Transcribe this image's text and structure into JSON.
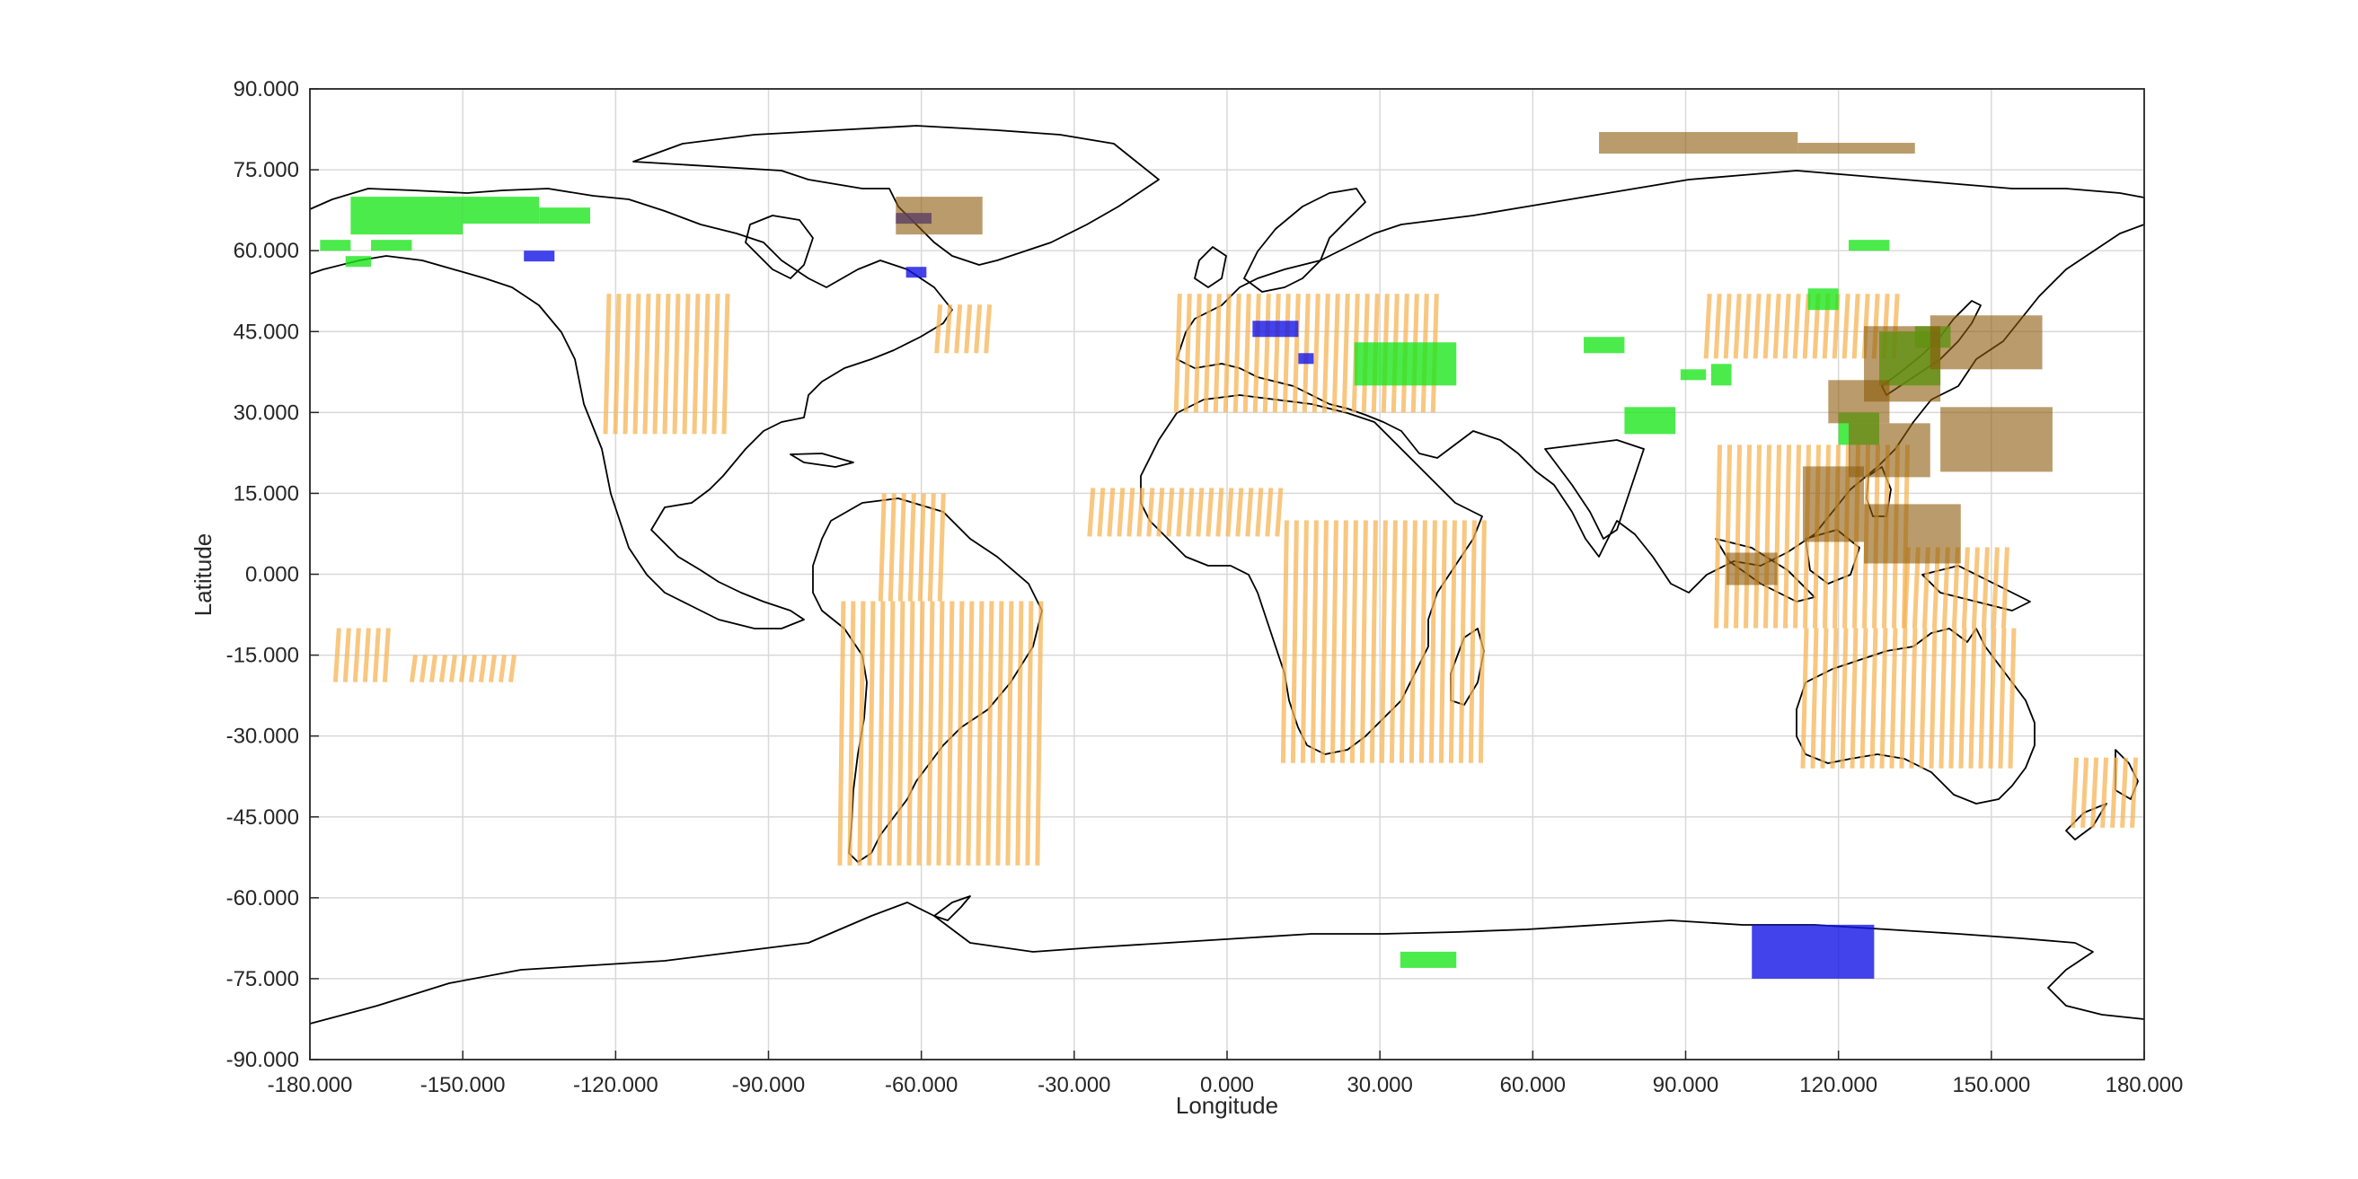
{
  "chart_data": {
    "type": "map",
    "xlabel": "Longitude",
    "ylabel": "Latitude",
    "xlim": [
      -180,
      180
    ],
    "ylim": [
      -90,
      90
    ],
    "grid": true,
    "xticks": [
      "-180.000",
      "-150.000",
      "-120.000",
      "-90.000",
      "-60.000",
      "-30.000",
      "0.000",
      "30.000",
      "60.000",
      "90.000",
      "120.000",
      "150.000",
      "180.000"
    ],
    "xtick_values": [
      -180,
      -150,
      -120,
      -90,
      -60,
      -30,
      0,
      30,
      60,
      90,
      120,
      150,
      180
    ],
    "yticks": [
      "90.000",
      "75.000",
      "60.000",
      "45.000",
      "30.000",
      "15.000",
      "0.000",
      "-15.000",
      "-30.000",
      "-45.000",
      "-60.000",
      "-75.000",
      "-90.000"
    ],
    "ytick_values": [
      90,
      75,
      60,
      45,
      30,
      15,
      0,
      -15,
      -30,
      -45,
      -60,
      -75,
      -90
    ],
    "colors": {
      "orange": "#f5b455",
      "green": "#1ee61e",
      "blue": "#1414e6",
      "brown": "#8c5a0a",
      "coastline": "#000000",
      "grid": "#d9d9d9"
    },
    "regions": {
      "green": [
        {
          "lon": [
            -172,
            -150
          ],
          "lat": [
            63,
            70
          ]
        },
        {
          "lon": [
            -150,
            -135
          ],
          "lat": [
            65,
            70
          ]
        },
        {
          "lon": [
            -135,
            -125
          ],
          "lat": [
            65,
            68
          ]
        },
        {
          "lon": [
            -178,
            -172
          ],
          "lat": [
            60,
            62
          ]
        },
        {
          "lon": [
            -168,
            -160
          ],
          "lat": [
            60,
            62
          ]
        },
        {
          "lon": [
            -173,
            -168
          ],
          "lat": [
            57,
            59
          ]
        },
        {
          "lon": [
            25,
            45
          ],
          "lat": [
            35,
            43
          ]
        },
        {
          "lon": [
            70,
            78
          ],
          "lat": [
            41,
            44
          ]
        },
        {
          "lon": [
            78,
            88
          ],
          "lat": [
            26,
            31
          ]
        },
        {
          "lon": [
            89,
            94
          ],
          "lat": [
            36,
            38
          ]
        },
        {
          "lon": [
            95,
            99
          ],
          "lat": [
            35,
            39
          ]
        },
        {
          "lon": [
            114,
            120
          ],
          "lat": [
            49,
            53
          ]
        },
        {
          "lon": [
            122,
            130
          ],
          "lat": [
            60,
            62
          ]
        },
        {
          "lon": [
            128,
            140
          ],
          "lat": [
            35,
            45
          ]
        },
        {
          "lon": [
            120,
            128
          ],
          "lat": [
            24,
            30
          ]
        },
        {
          "lon": [
            135,
            142
          ],
          "lat": [
            42,
            46
          ]
        },
        {
          "lon": [
            34,
            45
          ],
          "lat": [
            -73,
            -70
          ]
        }
      ],
      "blue": [
        {
          "lon": [
            -138,
            -132
          ],
          "lat": [
            58,
            60
          ]
        },
        {
          "lon": [
            -65,
            -58
          ],
          "lat": [
            65,
            67
          ]
        },
        {
          "lon": [
            -63,
            -59
          ],
          "lat": [
            55,
            57
          ]
        },
        {
          "lon": [
            5,
            14
          ],
          "lat": [
            44,
            47
          ]
        },
        {
          "lon": [
            14,
            17
          ],
          "lat": [
            39,
            41
          ]
        },
        {
          "lon": [
            103,
            127
          ],
          "lat": [
            -75,
            -65
          ]
        }
      ],
      "brown": [
        {
          "lon": [
            73,
            112
          ],
          "lat": [
            78,
            82
          ]
        },
        {
          "lon": [
            112,
            135
          ],
          "lat": [
            78,
            80
          ]
        },
        {
          "lon": [
            -65,
            -48
          ],
          "lat": [
            63,
            70
          ]
        },
        {
          "lon": [
            138,
            160
          ],
          "lat": [
            38,
            48
          ]
        },
        {
          "lon": [
            140,
            162
          ],
          "lat": [
            19,
            31
          ]
        },
        {
          "lon": [
            125,
            140
          ],
          "lat": [
            32,
            46
          ]
        },
        {
          "lon": [
            118,
            130
          ],
          "lat": [
            28,
            36
          ]
        },
        {
          "lon": [
            122,
            138
          ],
          "lat": [
            18,
            28
          ]
        },
        {
          "lon": [
            113,
            125
          ],
          "lat": [
            6,
            20
          ]
        },
        {
          "lon": [
            125,
            144
          ],
          "lat": [
            2,
            13
          ]
        },
        {
          "lon": [
            98,
            108
          ],
          "lat": [
            -2,
            4
          ]
        }
      ],
      "orange": [
        {
          "lon": [
            -122,
            -97
          ],
          "lat": [
            26,
            52
          ]
        },
        {
          "lon": [
            -57,
            -47
          ],
          "lat": [
            41,
            50
          ]
        },
        {
          "lon": [
            -10,
            42
          ],
          "lat": [
            30,
            52
          ]
        },
        {
          "lon": [
            -27,
            10
          ],
          "lat": [
            7,
            16
          ]
        },
        {
          "lon": [
            11,
            51
          ],
          "lat": [
            -35,
            10
          ]
        },
        {
          "lon": [
            -76,
            -37
          ],
          "lat": [
            -54,
            -5
          ]
        },
        {
          "lon": [
            -68,
            -55
          ],
          "lat": [
            -5,
            15
          ]
        },
        {
          "lon": [
            94,
            132
          ],
          "lat": [
            40,
            52
          ]
        },
        {
          "lon": [
            96,
            133
          ],
          "lat": [
            -10,
            24
          ]
        },
        {
          "lon": [
            133,
            153
          ],
          "lat": [
            -10,
            5
          ]
        },
        {
          "lon": [
            113,
            154
          ],
          "lat": [
            -36,
            -10
          ]
        },
        {
          "lon": [
            166,
            178
          ],
          "lat": [
            -47,
            -34
          ]
        },
        {
          "lon": [
            -175,
            -165
          ],
          "lat": [
            -20,
            -10
          ]
        },
        {
          "lon": [
            -160,
            -140
          ],
          "lat": [
            -20,
            -15
          ]
        }
      ]
    }
  }
}
